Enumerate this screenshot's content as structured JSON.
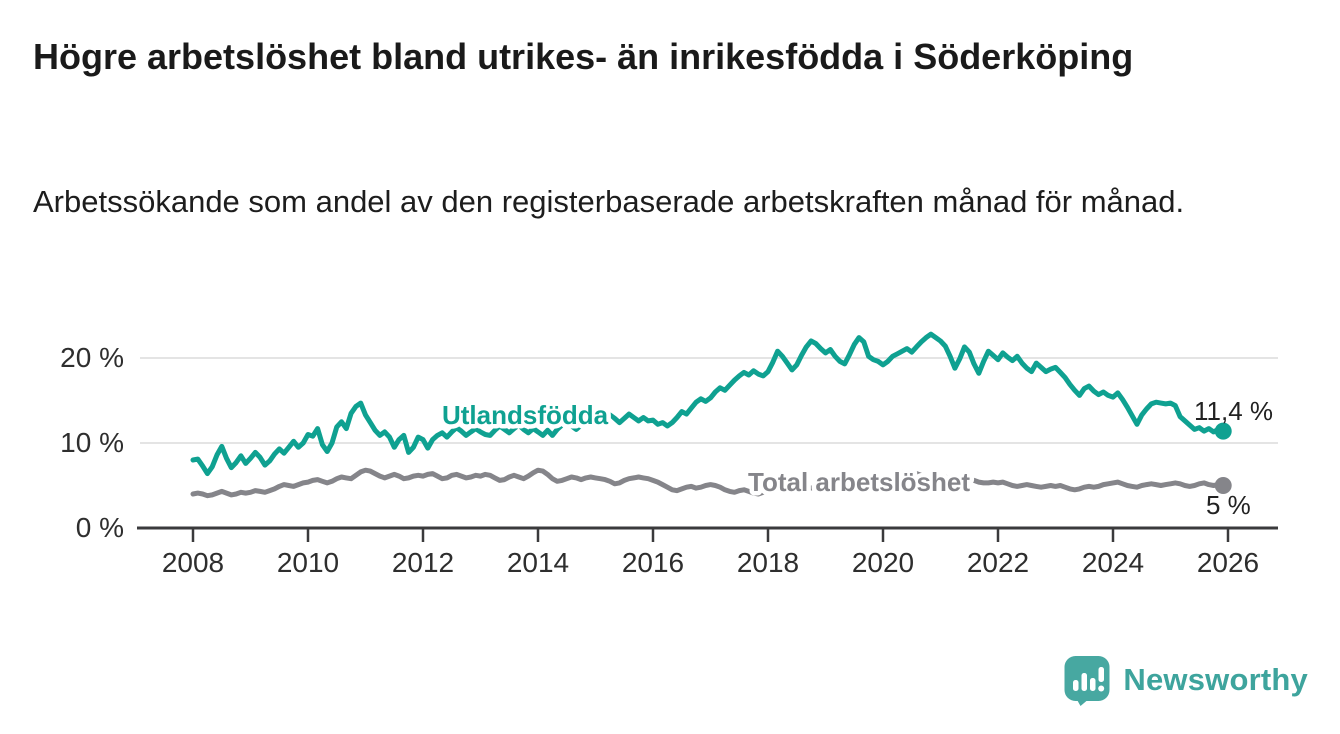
{
  "header": {
    "title": "Högre arbetslöshet bland utrikes- än inrikesfödda i Söderköping",
    "subtitle": "Arbetssökande som andel av den registerbaserade arbetskraften månad för månad."
  },
  "footer": {
    "brand": "Newsworthy",
    "brand_color": "#3ea49d",
    "logo_icon": "newsworthy-speech-bubble-bar-chart-icon",
    "logo_color": "#47a8a1"
  },
  "chart_data": {
    "type": "line",
    "unit": "%",
    "grid": "horizontal",
    "legend": "inline-labels",
    "x_start_year": 2008,
    "points_per_year": 12,
    "xlim": [
      2008,
      2026.9
    ],
    "ylim": [
      0,
      23.5
    ],
    "x_ticks": [
      "2008",
      "2010",
      "2012",
      "2014",
      "2016",
      "2018",
      "2020",
      "2022",
      "2024",
      "2026"
    ],
    "y_ticks": [
      {
        "value": 0,
        "label": "0 %"
      },
      {
        "value": 10,
        "label": "10 %"
      },
      {
        "value": 20,
        "label": "20 %"
      }
    ],
    "annotation_color": "#222222",
    "axis_color": "#3a3a3c",
    "grid_color": "#dcdcdc",
    "series": [
      {
        "name": "Utlandsfödda",
        "color": "#0fa191",
        "end_label": "11,4 %",
        "end_value": 11.4,
        "values": [
          8.0,
          8.1,
          7.3,
          6.4,
          7.2,
          8.6,
          9.6,
          8.2,
          7.1,
          7.7,
          8.5,
          7.6,
          8.2,
          8.9,
          8.3,
          7.4,
          7.9,
          8.7,
          9.3,
          8.8,
          9.5,
          10.2,
          9.5,
          10.0,
          11.0,
          10.8,
          11.7,
          9.8,
          9.0,
          10.0,
          11.9,
          12.5,
          11.7,
          13.5,
          14.3,
          14.7,
          13.3,
          12.4,
          11.5,
          10.9,
          11.3,
          10.7,
          9.5,
          10.4,
          10.9,
          8.9,
          9.5,
          10.7,
          10.4,
          9.4,
          10.4,
          10.9,
          11.2,
          10.7,
          11.3,
          11.8,
          11.4,
          10.9,
          11.3,
          11.7,
          11.3,
          11.0,
          10.9,
          11.5,
          12.0,
          11.6,
          11.2,
          11.7,
          12.1,
          11.6,
          11.2,
          11.7,
          11.3,
          10.9,
          11.5,
          10.9,
          11.6,
          12.1,
          12.5,
          12.0,
          11.6,
          12.1,
          12.6,
          12.2,
          12.7,
          12.3,
          12.8,
          13.3,
          12.9,
          12.4,
          12.9,
          13.4,
          13.0,
          12.6,
          13.0,
          12.6,
          12.7,
          12.2,
          12.4,
          12.0,
          12.4,
          13.0,
          13.7,
          13.4,
          14.1,
          14.8,
          15.2,
          14.9,
          15.3,
          16.0,
          16.5,
          16.2,
          16.8,
          17.4,
          17.9,
          18.3,
          18.0,
          18.5,
          18.1,
          17.9,
          18.4,
          19.5,
          20.8,
          20.2,
          19.4,
          18.6,
          19.2,
          20.3,
          21.3,
          22.0,
          21.7,
          21.1,
          20.6,
          21.0,
          20.2,
          19.6,
          19.3,
          20.4,
          21.6,
          22.4,
          21.9,
          20.2,
          19.8,
          19.6,
          19.2,
          19.6,
          20.2,
          20.5,
          20.8,
          21.1,
          20.7,
          21.3,
          21.9,
          22.4,
          22.8,
          22.4,
          22.0,
          21.4,
          20.2,
          18.8,
          19.9,
          21.3,
          20.7,
          19.3,
          18.2,
          19.6,
          20.8,
          20.3,
          19.8,
          20.6,
          20.1,
          19.7,
          20.2,
          19.4,
          18.8,
          18.4,
          19.4,
          18.9,
          18.4,
          18.7,
          18.9,
          18.3,
          17.7,
          16.9,
          16.2,
          15.6,
          16.4,
          16.7,
          16.1,
          15.7,
          16.0,
          15.6,
          15.4,
          15.9,
          15.1,
          14.2,
          13.2,
          12.2,
          13.3,
          14.0,
          14.6,
          14.8,
          14.7,
          14.6,
          14.7,
          14.4,
          13.1,
          12.6,
          12.1,
          11.6,
          11.8,
          11.4,
          11.7,
          11.3,
          11.6,
          11.4
        ]
      },
      {
        "name": "Total arbetslöshet",
        "color": "#85858a",
        "end_label": "5 %",
        "end_value": 5.0,
        "values": [
          4.0,
          4.1,
          4.0,
          3.8,
          3.9,
          4.1,
          4.3,
          4.1,
          3.9,
          4.0,
          4.2,
          4.1,
          4.2,
          4.4,
          4.3,
          4.2,
          4.4,
          4.6,
          4.9,
          5.1,
          5.0,
          4.9,
          5.1,
          5.3,
          5.4,
          5.6,
          5.7,
          5.5,
          5.3,
          5.5,
          5.8,
          6.0,
          5.9,
          5.8,
          6.2,
          6.6,
          6.8,
          6.7,
          6.4,
          6.1,
          5.9,
          6.1,
          6.3,
          6.1,
          5.8,
          5.9,
          6.1,
          6.2,
          6.1,
          6.3,
          6.4,
          6.1,
          5.8,
          5.9,
          6.2,
          6.3,
          6.1,
          5.9,
          6.0,
          6.2,
          6.1,
          6.3,
          6.2,
          5.9,
          5.6,
          5.7,
          6.0,
          6.2,
          6.0,
          5.8,
          6.1,
          6.5,
          6.8,
          6.7,
          6.3,
          5.8,
          5.5,
          5.6,
          5.8,
          6.0,
          5.9,
          5.7,
          5.9,
          6.0,
          5.9,
          5.8,
          5.7,
          5.5,
          5.2,
          5.3,
          5.6,
          5.8,
          5.9,
          6.0,
          5.9,
          5.8,
          5.6,
          5.4,
          5.1,
          4.8,
          4.5,
          4.4,
          4.6,
          4.8,
          4.9,
          4.7,
          4.8,
          5.0,
          5.1,
          5.0,
          4.8,
          4.5,
          4.3,
          4.2,
          4.4,
          4.5,
          4.3,
          4.1,
          4.0,
          4.2,
          4.4,
          4.6,
          4.5,
          4.4,
          4.5,
          4.7,
          4.9,
          5.0,
          4.8,
          4.7,
          4.8,
          4.9,
          5.0,
          5.1,
          5.0,
          4.9,
          5.0,
          5.2,
          5.4,
          5.5,
          5.3,
          5.2,
          5.3,
          5.4,
          5.5,
          5.8,
          6.2,
          6.5,
          6.6,
          6.6,
          6.5,
          6.4,
          6.2,
          6.0,
          5.9,
          5.8,
          5.9,
          6.0,
          5.8,
          5.6,
          5.5,
          5.6,
          5.7,
          5.6,
          5.4,
          5.3,
          5.3,
          5.4,
          5.3,
          5.4,
          5.2,
          5.0,
          4.9,
          5.0,
          5.1,
          5.0,
          4.9,
          4.8,
          4.9,
          5.0,
          4.9,
          5.0,
          4.8,
          4.6,
          4.5,
          4.6,
          4.8,
          4.9,
          4.8,
          4.9,
          5.1,
          5.2,
          5.3,
          5.4,
          5.2,
          5.0,
          4.9,
          4.8,
          5.0,
          5.1,
          5.2,
          5.1,
          5.0,
          5.1,
          5.2,
          5.3,
          5.2,
          5.0,
          4.9,
          5.0,
          5.2,
          5.3,
          5.1,
          5.0,
          5.1,
          5.0
        ]
      }
    ]
  }
}
